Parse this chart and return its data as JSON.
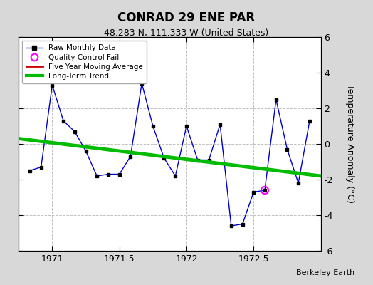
{
  "title": "CONRAD 29 ENE PAR",
  "subtitle": "48.283 N, 111.333 W (United States)",
  "ylabel": "Temperature Anomaly (°C)",
  "attribution": "Berkeley Earth",
  "xlim": [
    1970.75,
    1973.0
  ],
  "ylim": [
    -6,
    6
  ],
  "yticks": [
    -6,
    -4,
    -2,
    0,
    2,
    4,
    6
  ],
  "xtick_vals": [
    1971.0,
    1971.5,
    1972.0,
    1972.5
  ],
  "xtick_labels": [
    "1971",
    "1971.5",
    "1972",
    "1972.5"
  ],
  "plot_bg": "#ffffff",
  "outer_bg": "#d8d8d8",
  "raw_x": [
    1970.833,
    1970.917,
    1971.0,
    1971.083,
    1971.167,
    1971.25,
    1971.333,
    1971.417,
    1971.5,
    1971.583,
    1971.667,
    1971.75,
    1971.833,
    1971.917,
    1972.0,
    1972.083,
    1972.167,
    1972.25,
    1972.333,
    1972.417,
    1972.5,
    1972.583,
    1972.667,
    1972.75,
    1972.833,
    1972.917
  ],
  "raw_y": [
    -1.5,
    -1.3,
    3.3,
    1.3,
    0.7,
    -0.4,
    -1.8,
    -1.7,
    -1.7,
    -0.7,
    3.4,
    1.0,
    -0.8,
    -1.8,
    1.0,
    -0.9,
    -0.9,
    1.1,
    -4.6,
    -4.5,
    -2.7,
    -2.6,
    2.5,
    -0.3,
    -2.2,
    1.3
  ],
  "qc_fail_x": [
    1972.583
  ],
  "qc_fail_y": [
    -2.6
  ],
  "trend_x": [
    1970.75,
    1973.0
  ],
  "trend_y": [
    0.3,
    -1.8
  ],
  "raw_color": "#0000cc",
  "trend_color": "#00bb00",
  "mavg_color": "#cc0000",
  "qc_color": "#ff00ff",
  "grid_color": "#c0c0c0"
}
